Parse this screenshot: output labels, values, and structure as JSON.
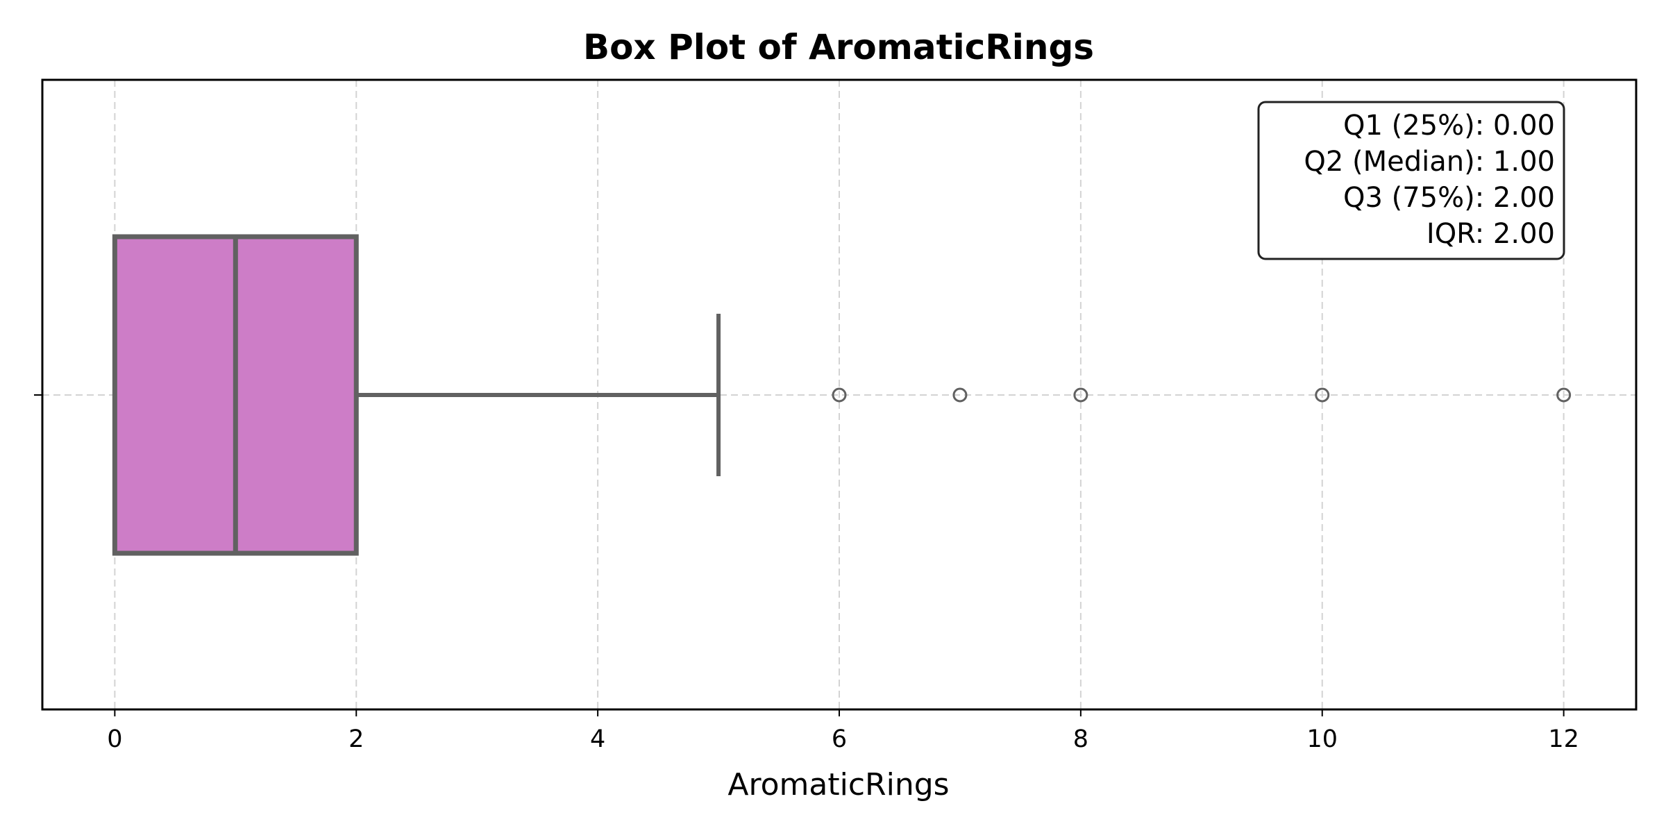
{
  "chart_data": {
    "type": "box",
    "orientation": "horizontal",
    "title": "Box Plot of AromaticRings",
    "xlabel": "AromaticRings",
    "ylabel": "",
    "xlim": [
      -0.6,
      12.6
    ],
    "xticks": [
      0,
      2,
      4,
      6,
      8,
      10,
      12
    ],
    "grid": true,
    "box": {
      "q1": 0,
      "median": 1,
      "q3": 2,
      "whisker_low": 0,
      "whisker_high": 5
    },
    "outliers": [
      6,
      7,
      8,
      10,
      12
    ],
    "stats_box": {
      "placement": "top-right",
      "lines": [
        "Q1 (25%): 0.00",
        "Q2 (Median): 1.00",
        "Q3 (75%): 2.00",
        "IQR: 2.00"
      ]
    },
    "colors": {
      "box_fill": "#CD7DC7",
      "box_edge": "#616161",
      "grid": "#D3D3D3",
      "axes": "#000000"
    }
  }
}
